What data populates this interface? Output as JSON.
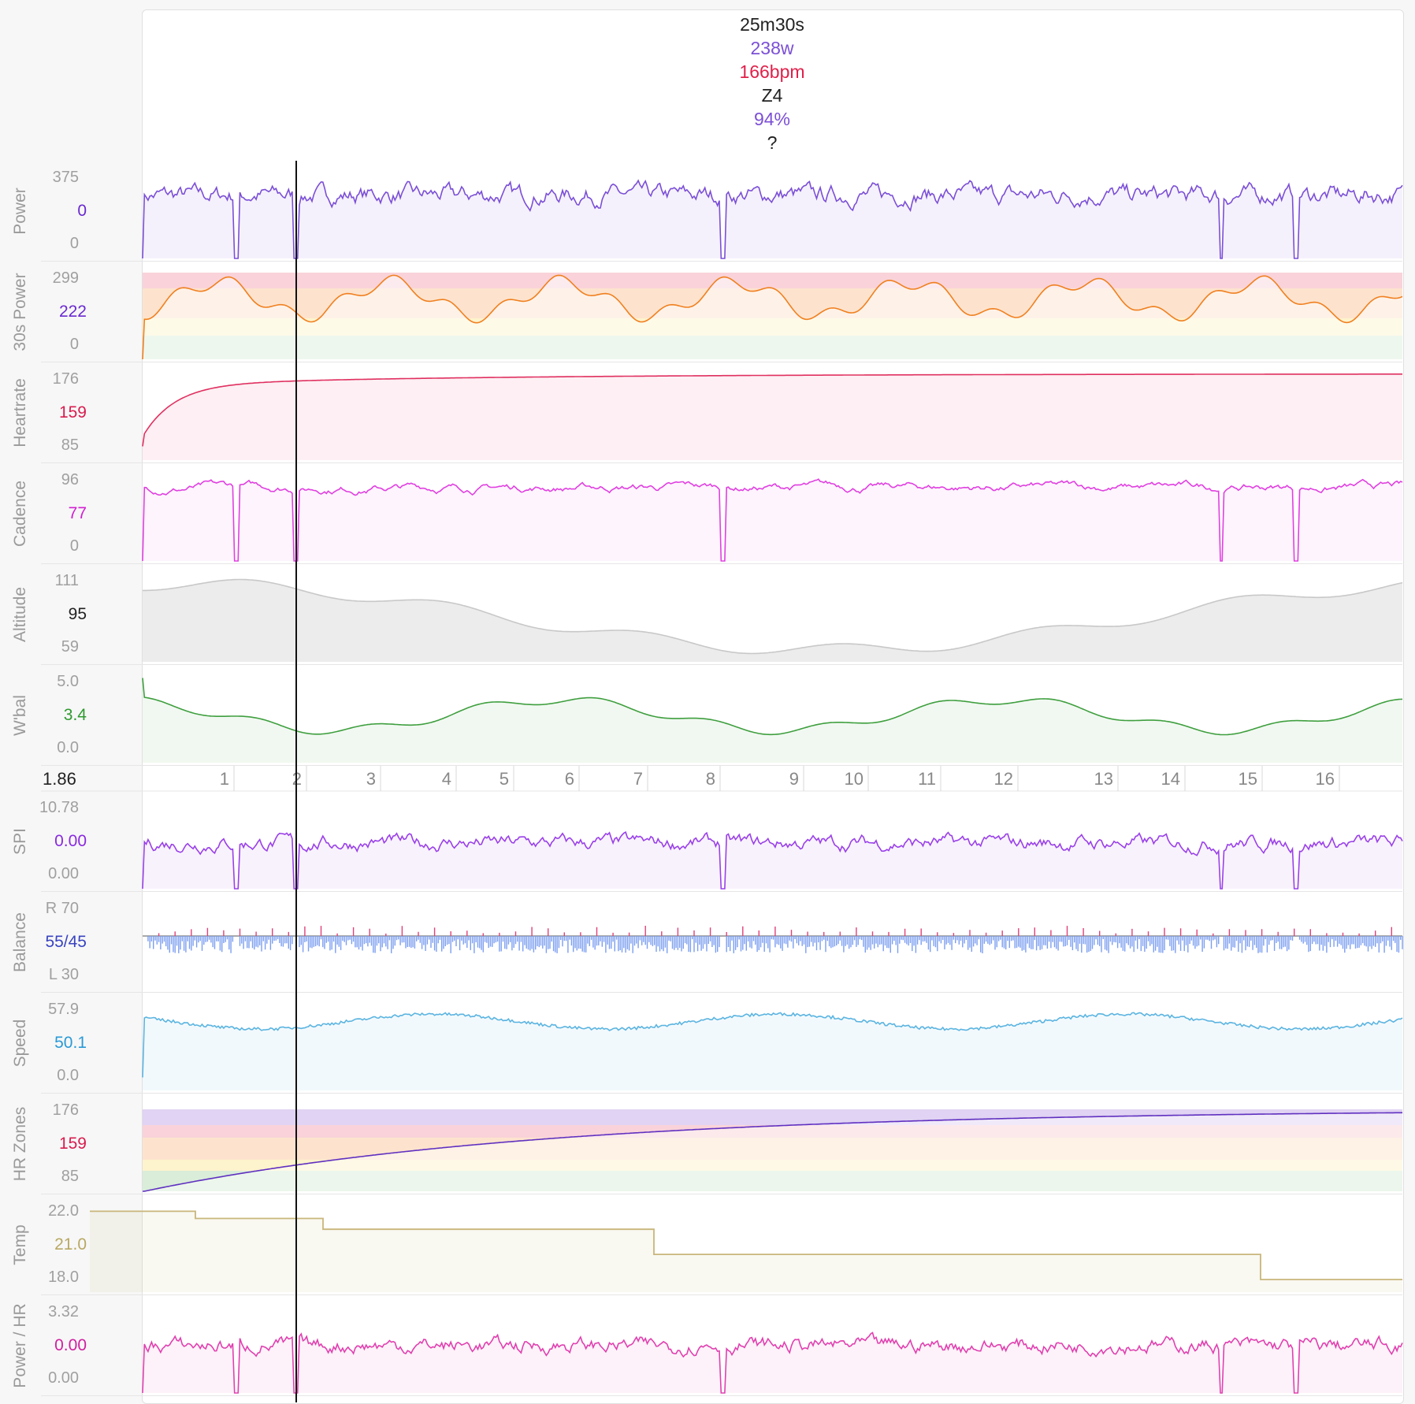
{
  "header": {
    "duration": "25m30s",
    "power": "238w",
    "heartrate": "166bpm",
    "zone": "Z4",
    "percent": "94%",
    "unknown": "?"
  },
  "colors": {
    "power": "#7b4fd6",
    "power30": "#7b4fd6",
    "heartrate": "#e03060",
    "cadence": "#e040e0",
    "altitude": "#bbbbbb",
    "wbal": "#3f9f3f",
    "spi": "#9a40e8",
    "balance_r": "#e0407a",
    "balance_l": "#7b9ef0",
    "speed": "#5bb4e0",
    "temp": "#c8b67a",
    "powerhr": "#e040b0"
  },
  "panels": [
    {
      "id": "power",
      "name": "Power",
      "top": "375",
      "mid": "0",
      "bottom": "0",
      "mid_color": "#6a2ad0"
    },
    {
      "id": "power30",
      "name": "30s Power",
      "top": "299",
      "mid": "222",
      "bottom": "0",
      "mid_color": "#6a2ad0"
    },
    {
      "id": "heartrate",
      "name": "Heartrate",
      "top": "176",
      "mid": "159",
      "bottom": "85",
      "mid_color": "#d81c4e"
    },
    {
      "id": "cadence",
      "name": "Cadence",
      "top": "96",
      "mid": "77",
      "bottom": "0",
      "mid_color": "#d020d0"
    },
    {
      "id": "altitude",
      "name": "Altitude",
      "top": "111",
      "mid": "95",
      "bottom": "59",
      "mid_color": "#222222"
    },
    {
      "id": "wbal",
      "name": "W'bal",
      "top": "5.0",
      "mid": "3.4",
      "bottom": "0.0",
      "mid_color": "#2f9a2f"
    },
    {
      "id": "spi",
      "name": "SPI",
      "top": "10.78",
      "mid": "0.00",
      "bottom": "0.00",
      "mid_color": "#8a2ae0"
    },
    {
      "id": "balance",
      "name": "Balance",
      "top": "R 70",
      "mid": "55/45",
      "bottom": "L 30",
      "mid_color": "#3a44c0"
    },
    {
      "id": "speed",
      "name": "Speed",
      "top": "57.9",
      "mid": "50.1",
      "bottom": "0.0",
      "mid_color": "#2a9ad6"
    },
    {
      "id": "hrzones",
      "name": "HR Zones",
      "top": "176",
      "mid": "159",
      "bottom": "85",
      "mid_color": "#d81c4e"
    },
    {
      "id": "temp",
      "name": "Temp",
      "top": "22.0",
      "mid": "21.0",
      "bottom": "18.0",
      "mid_color": "#b8a864"
    },
    {
      "id": "powerhr",
      "name": "Power / HR",
      "top": "3.32",
      "mid": "0.00",
      "bottom": "0.00",
      "mid_color": "#d020a0"
    }
  ],
  "laps": {
    "label": "1.86",
    "numbers": [
      "1",
      "2",
      "3",
      "4",
      "5",
      "6",
      "7",
      "8",
      "9",
      "10",
      "11",
      "12",
      "13",
      "14",
      "15",
      "16"
    ]
  }
}
